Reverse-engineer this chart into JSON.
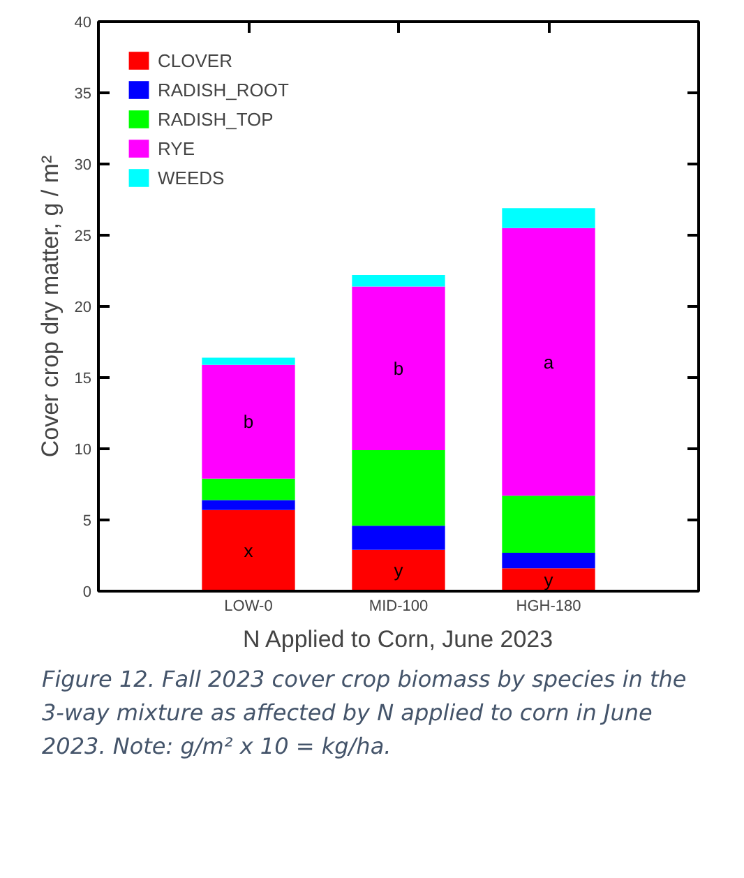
{
  "chart_data": {
    "type": "bar",
    "stacked": true,
    "categories": [
      "LOW-0",
      "MID-100",
      "HGH-180"
    ],
    "xlabel": "N Applied to Corn, June 2023",
    "ylabel": "Cover crop dry matter, g / m²",
    "series": [
      {
        "name": "CLOVER",
        "color": "#ff0000",
        "values": [
          5.7,
          2.9,
          1.6
        ]
      },
      {
        "name": "RADISH_ROOT",
        "color": "#0000ff",
        "values": [
          0.7,
          1.7,
          1.1
        ]
      },
      {
        "name": "RADISH_TOP",
        "color": "#00ff00",
        "values": [
          1.5,
          5.3,
          4.0
        ]
      },
      {
        "name": "RYE",
        "color": "#ff00ff",
        "values": [
          8.0,
          11.5,
          18.8
        ]
      },
      {
        "name": "WEEDS",
        "color": "#00ffff",
        "values": [
          0.5,
          0.8,
          1.4
        ]
      }
    ],
    "ylim": [
      0,
      40
    ],
    "yticks": [
      0,
      5,
      10,
      15,
      20,
      25,
      30,
      35,
      40
    ],
    "grid": false,
    "legend": "top left",
    "annotations": [
      "x",
      "b",
      "y",
      "b",
      "y",
      "a",
      "Figure 12. Fall 2023 cover crop biomass by species in the 3-way mixture as affected by N applied to corn in June 2023. Note: g/m² x 10 = kg/ha."
    ]
  }
}
